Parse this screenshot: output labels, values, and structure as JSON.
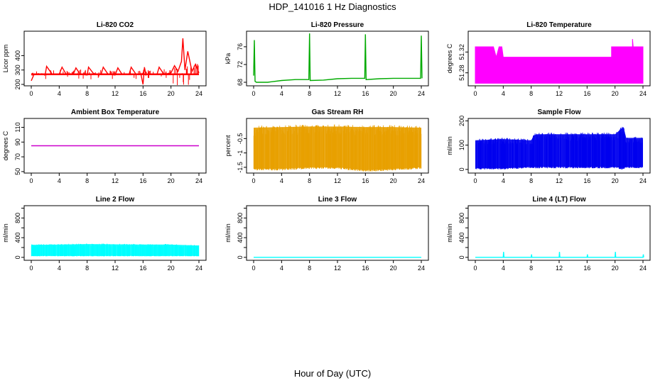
{
  "title": "HDP_141016  1 Hz Diagnostics",
  "xlabel": "Hour of Day (UTC)",
  "chart_data": [
    {
      "type": "line",
      "title": "Li-820 CO2",
      "ylabel": "Licor ppm",
      "color": "#ff0000",
      "xlim": [
        0,
        24
      ],
      "ylim": [
        190,
        570
      ],
      "xticks": [
        0,
        4,
        8,
        12,
        16,
        20,
        24
      ],
      "yticks": [
        200,
        300,
        400
      ],
      "x": [
        0,
        0.4,
        1,
        2,
        2.2,
        3,
        4,
        4.4,
        5,
        6,
        6.4,
        7,
        8,
        8.2,
        9,
        10,
        10.3,
        11,
        12,
        12.4,
        13,
        14,
        14.3,
        15,
        15.7,
        16,
        16.2,
        16.4,
        17,
        18,
        18.3,
        19,
        20,
        20.5,
        21,
        21.5,
        21.7,
        22,
        22.4,
        23,
        23.5,
        24
      ],
      "y": [
        225,
        270,
        270,
        270,
        325,
        270,
        270,
        320,
        270,
        270,
        315,
        270,
        265,
        320,
        270,
        270,
        320,
        270,
        265,
        315,
        270,
        270,
        320,
        270,
        270,
        200,
        320,
        270,
        270,
        270,
        320,
        270,
        280,
        330,
        290,
        360,
        520,
        300,
        430,
        290,
        340,
        280
      ],
      "baseline": 270
    },
    {
      "type": "line",
      "title": "Li-820 Pressure",
      "ylabel": "kPa",
      "color": "#00aa00",
      "xlim": [
        0,
        24
      ],
      "ylim": [
        67.2,
        79.5
      ],
      "xticks": [
        0,
        4,
        8,
        12,
        16,
        20,
        24
      ],
      "yticks": [
        68,
        72,
        76
      ],
      "x": [
        0,
        0.1,
        0.2,
        0.4,
        2,
        4,
        6,
        7.9,
        8,
        8.1,
        10,
        12,
        14,
        15.9,
        16,
        16.1,
        18,
        20,
        22,
        23.9,
        24,
        24.1
      ],
      "y": [
        69.5,
        77.5,
        68.2,
        68,
        68,
        68.4,
        68.6,
        68.6,
        79,
        68.4,
        68.5,
        68.8,
        68.9,
        68.9,
        78.8,
        68.6,
        68.8,
        68.9,
        68.9,
        68.9,
        78.5,
        68.9
      ]
    },
    {
      "type": "line",
      "title": "Li-820 Temperature",
      "ylabel": "degrees C",
      "color": "#ff00ff",
      "xlim": [
        0,
        24
      ],
      "ylim": [
        51.255,
        51.36
      ],
      "xticks": [
        0,
        4,
        8,
        12,
        16,
        20,
        24
      ],
      "yticks": [
        51.28,
        51.32
      ],
      "x": [
        0,
        1,
        2,
        2.6,
        3,
        3.4,
        3.8,
        4,
        8,
        12,
        16,
        19.5,
        19.5,
        22.5,
        22.5,
        22.6,
        24
      ],
      "y": [
        51.33,
        51.33,
        51.33,
        51.33,
        51.31,
        51.33,
        51.33,
        51.31,
        51.31,
        51.31,
        51.31,
        51.31,
        51.33,
        51.33,
        51.345,
        51.33,
        51.33
      ],
      "fill_base": 51.26
    },
    {
      "type": "line",
      "title": "Ambient Box Temperature",
      "ylabel": "degrees C",
      "color": "#cc00cc",
      "xlim": [
        0,
        24
      ],
      "ylim": [
        48,
        122
      ],
      "xticks": [
        0,
        4,
        8,
        12,
        16,
        20,
        24
      ],
      "yticks": [
        50,
        70,
        90,
        110
      ],
      "x": [
        0,
        24
      ],
      "y": [
        85,
        85
      ]
    },
    {
      "type": "area",
      "title": "Gas Stream RH",
      "ylabel": "percent",
      "color": "#e8a000",
      "xlim": [
        0,
        24
      ],
      "ylim": [
        -1.7,
        0.2
      ],
      "xticks": [
        0,
        4,
        8,
        12,
        16,
        20,
        24
      ],
      "yticks": [
        -1.5,
        -1,
        -0.5
      ],
      "x": [
        0,
        4,
        8,
        12,
        16,
        20,
        24
      ],
      "upper": [
        -0.12,
        -0.1,
        -0.08,
        -0.08,
        -0.1,
        -0.1,
        -0.12
      ],
      "lower": [
        -1.55,
        -1.55,
        -1.5,
        -1.5,
        -1.6,
        -1.55,
        -1.5
      ]
    },
    {
      "type": "area",
      "title": "Sample Flow",
      "ylabel": "ml/min",
      "color": "#0000ee",
      "xlim": [
        0,
        24
      ],
      "ylim": [
        -15,
        210
      ],
      "xticks": [
        0,
        4,
        8,
        12,
        16,
        20,
        24
      ],
      "yticks": [
        0,
        100,
        200
      ],
      "x": [
        0,
        4,
        8,
        8.5,
        12,
        16,
        20,
        21.2,
        21.5,
        24
      ],
      "upper": [
        120,
        125,
        120,
        145,
        145,
        145,
        145,
        175,
        130,
        130
      ],
      "lower": [
        5,
        5,
        10,
        10,
        10,
        10,
        10,
        5,
        10,
        10
      ]
    },
    {
      "type": "area",
      "title": "Line 2 Flow",
      "ylabel": "ml/min",
      "color": "#00ffff",
      "xlim": [
        0,
        24
      ],
      "ylim": [
        -60,
        1050
      ],
      "xticks": [
        0,
        4,
        8,
        12,
        16,
        20,
        24
      ],
      "yticks": [
        0,
        200,
        400,
        600,
        800,
        1000
      ],
      "yticklabels": [
        "0",
        "400",
        "800"
      ],
      "x": [
        0,
        4,
        8,
        12,
        16,
        20,
        24
      ],
      "upper": [
        255,
        260,
        270,
        265,
        260,
        260,
        240
      ],
      "lower": [
        30,
        30,
        30,
        30,
        30,
        30,
        30
      ]
    },
    {
      "type": "line",
      "title": "Line 3 Flow",
      "ylabel": "ml/min",
      "color": "#00ffff",
      "xlim": [
        0,
        24
      ],
      "ylim": [
        -60,
        1050
      ],
      "xticks": [
        0,
        4,
        8,
        12,
        16,
        20,
        24
      ],
      "yticks": [
        0,
        200,
        400,
        600,
        800,
        1000
      ],
      "yticklabels": [
        "0",
        "400",
        "800"
      ],
      "x": [
        0,
        24
      ],
      "y": [
        0,
        0
      ]
    },
    {
      "type": "line",
      "title": "Line 4 (LT) Flow",
      "ylabel": "ml/min",
      "color": "#00ffff",
      "xlim": [
        0,
        24
      ],
      "ylim": [
        -60,
        1050
      ],
      "xticks": [
        0,
        4,
        8,
        12,
        16,
        20,
        24
      ],
      "yticks": [
        0,
        200,
        400,
        600,
        800,
        1000
      ],
      "yticklabels": [
        "0",
        "400",
        "800"
      ],
      "x": [
        0,
        4,
        4.05,
        4.1,
        8,
        8.05,
        8.1,
        12,
        12.05,
        12.1,
        16,
        16.05,
        16.1,
        20,
        20.05,
        20.1,
        24,
        24.05,
        24.1
      ],
      "y": [
        0,
        0,
        110,
        0,
        0,
        60,
        0,
        0,
        110,
        0,
        0,
        60,
        0,
        0,
        110,
        0,
        0,
        60,
        0
      ]
    }
  ]
}
